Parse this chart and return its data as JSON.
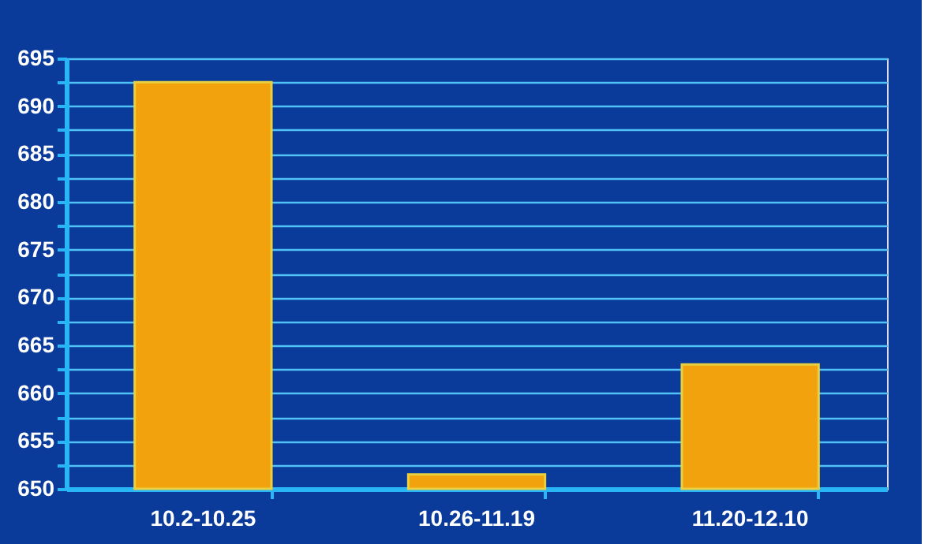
{
  "chart_data": {
    "type": "bar",
    "categories": [
      "10.2-10.25",
      "10.26-11.19",
      "11.20-12.10"
    ],
    "values": [
      692.5,
      651.5,
      663
    ],
    "color": "#f2a20c",
    "ylim": [
      650,
      695
    ],
    "yticks": [
      650,
      {
        "value": 652.5,
        "label": null
      },
      655,
      {
        "value": 657.5,
        "label": null
      },
      660,
      {
        "value": 662.5,
        "label": null
      },
      665,
      {
        "value": 667.5,
        "label": null
      },
      670,
      {
        "value": 672.5,
        "label": null
      },
      675,
      {
        "value": 677.5,
        "label": null
      },
      680,
      {
        "value": 682.5,
        "label": null
      },
      685,
      {
        "value": 687.5,
        "label": null
      },
      690,
      {
        "value": 692.5,
        "label": null
      },
      695
    ],
    "grid": "y"
  }
}
